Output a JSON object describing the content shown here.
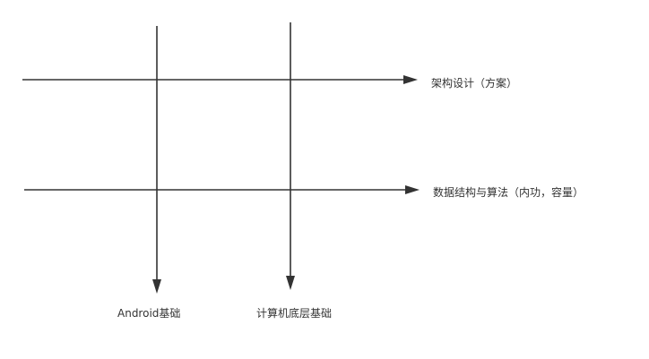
{
  "diagram": {
    "horizontal_axes": [
      {
        "label": "架构设计（方案）"
      },
      {
        "label": "数据结构与算法（内功，容量）"
      }
    ],
    "vertical_axes": [
      {
        "label": "Android基础"
      },
      {
        "label": "计算机底层基础"
      }
    ],
    "line_color": "#333333"
  }
}
